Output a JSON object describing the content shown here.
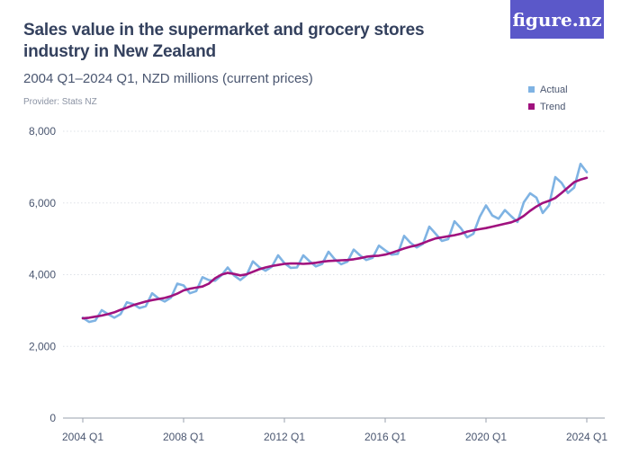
{
  "header": {
    "title": "Sales value in the supermarket and grocery stores industry in New Zealand",
    "subtitle": "2004 Q1–2024 Q1, NZD millions (current prices)",
    "provider": "Provider: Stats NZ",
    "logo_text": "figure.nz"
  },
  "colors": {
    "actual": "#7fb3e3",
    "trend": "#a0117e",
    "logo_bg": "#5b58c9"
  },
  "chart_data": {
    "type": "line",
    "title": "Sales value in the supermarket and grocery stores industry in New Zealand",
    "subtitle": "2004 Q1–2024 Q1, NZD millions (current prices)",
    "xlabel": "",
    "ylabel": "",
    "ylim": [
      0,
      8000
    ],
    "yticks": [
      "0",
      "2,000",
      "4,000",
      "6,000",
      "8,000"
    ],
    "xticks": [
      "2004 Q1",
      "2008 Q1",
      "2012 Q1",
      "2016 Q1",
      "2020 Q1",
      "2024 Q1"
    ],
    "legend": {
      "placement": "top-right",
      "entries": [
        "Actual",
        "Trend"
      ]
    },
    "grid": "horizontal",
    "x_start": "2004 Q1",
    "x_end": "2024 Q1",
    "series": [
      {
        "name": "Actual",
        "values": [
          2800,
          2680,
          2720,
          3010,
          2900,
          2800,
          2900,
          3230,
          3180,
          3070,
          3120,
          3480,
          3340,
          3250,
          3360,
          3750,
          3700,
          3480,
          3540,
          3930,
          3850,
          3830,
          3980,
          4200,
          3980,
          3850,
          3990,
          4370,
          4210,
          4110,
          4220,
          4540,
          4320,
          4190,
          4200,
          4540,
          4370,
          4230,
          4300,
          4640,
          4430,
          4290,
          4360,
          4700,
          4540,
          4410,
          4470,
          4810,
          4680,
          4560,
          4580,
          5080,
          4890,
          4760,
          4860,
          5340,
          5140,
          4940,
          4990,
          5490,
          5300,
          5040,
          5140,
          5610,
          5930,
          5650,
          5560,
          5800,
          5630,
          5470,
          6020,
          6270,
          6150,
          5720,
          5930,
          6720,
          6560,
          6280,
          6430,
          7090,
          6860
        ]
      },
      {
        "name": "Trend",
        "values": [
          2780,
          2800,
          2830,
          2860,
          2900,
          2950,
          3020,
          3080,
          3150,
          3200,
          3250,
          3290,
          3320,
          3350,
          3400,
          3470,
          3560,
          3610,
          3640,
          3670,
          3750,
          3900,
          4000,
          4050,
          4020,
          3980,
          4010,
          4080,
          4150,
          4200,
          4240,
          4270,
          4300,
          4310,
          4310,
          4300,
          4310,
          4330,
          4360,
          4380,
          4390,
          4400,
          4410,
          4430,
          4460,
          4500,
          4520,
          4530,
          4560,
          4610,
          4670,
          4730,
          4780,
          4820,
          4880,
          4950,
          5010,
          5040,
          5070,
          5100,
          5140,
          5200,
          5240,
          5270,
          5300,
          5340,
          5380,
          5420,
          5460,
          5530,
          5640,
          5780,
          5900,
          6000,
          6060,
          6140,
          6280,
          6430,
          6580,
          6650,
          6700
        ]
      }
    ]
  }
}
